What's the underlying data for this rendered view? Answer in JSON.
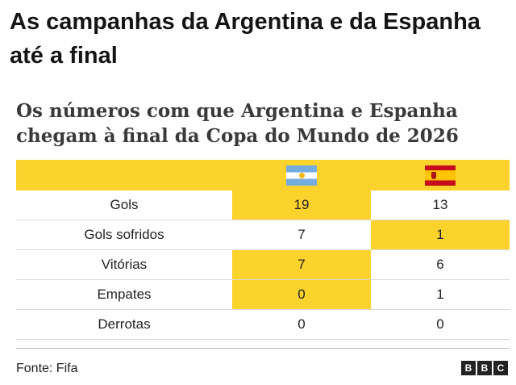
{
  "headline": "As campanhas da Argentina e da Espanha até a final",
  "subtitle": "Os números com que Argentina e Espanha chegam à final da Copa do Mundo de 2026",
  "table": {
    "columns": [
      {
        "flag_icon": "argentina-flag-icon"
      },
      {
        "flag_icon": "spain-flag-icon"
      }
    ],
    "rows": [
      {
        "label": "Gols",
        "argentina": "19",
        "espanha": "13",
        "highlight": "argentina"
      },
      {
        "label": "Gols sofridos",
        "argentina": "7",
        "espanha": "1",
        "highlight": "espanha"
      },
      {
        "label": "Vitórias",
        "argentina": "7",
        "espanha": "6",
        "highlight": "argentina"
      },
      {
        "label": "Empates",
        "argentina": "0",
        "espanha": "1",
        "highlight": "argentina"
      },
      {
        "label": "Derrotas",
        "argentina": "0",
        "espanha": "0",
        "highlight": ""
      }
    ]
  },
  "footer": {
    "source": "Fonte: Fifa",
    "logo": [
      "B",
      "B",
      "C"
    ]
  },
  "colors": {
    "highlight": "#fcd22d",
    "text": "#222222"
  }
}
